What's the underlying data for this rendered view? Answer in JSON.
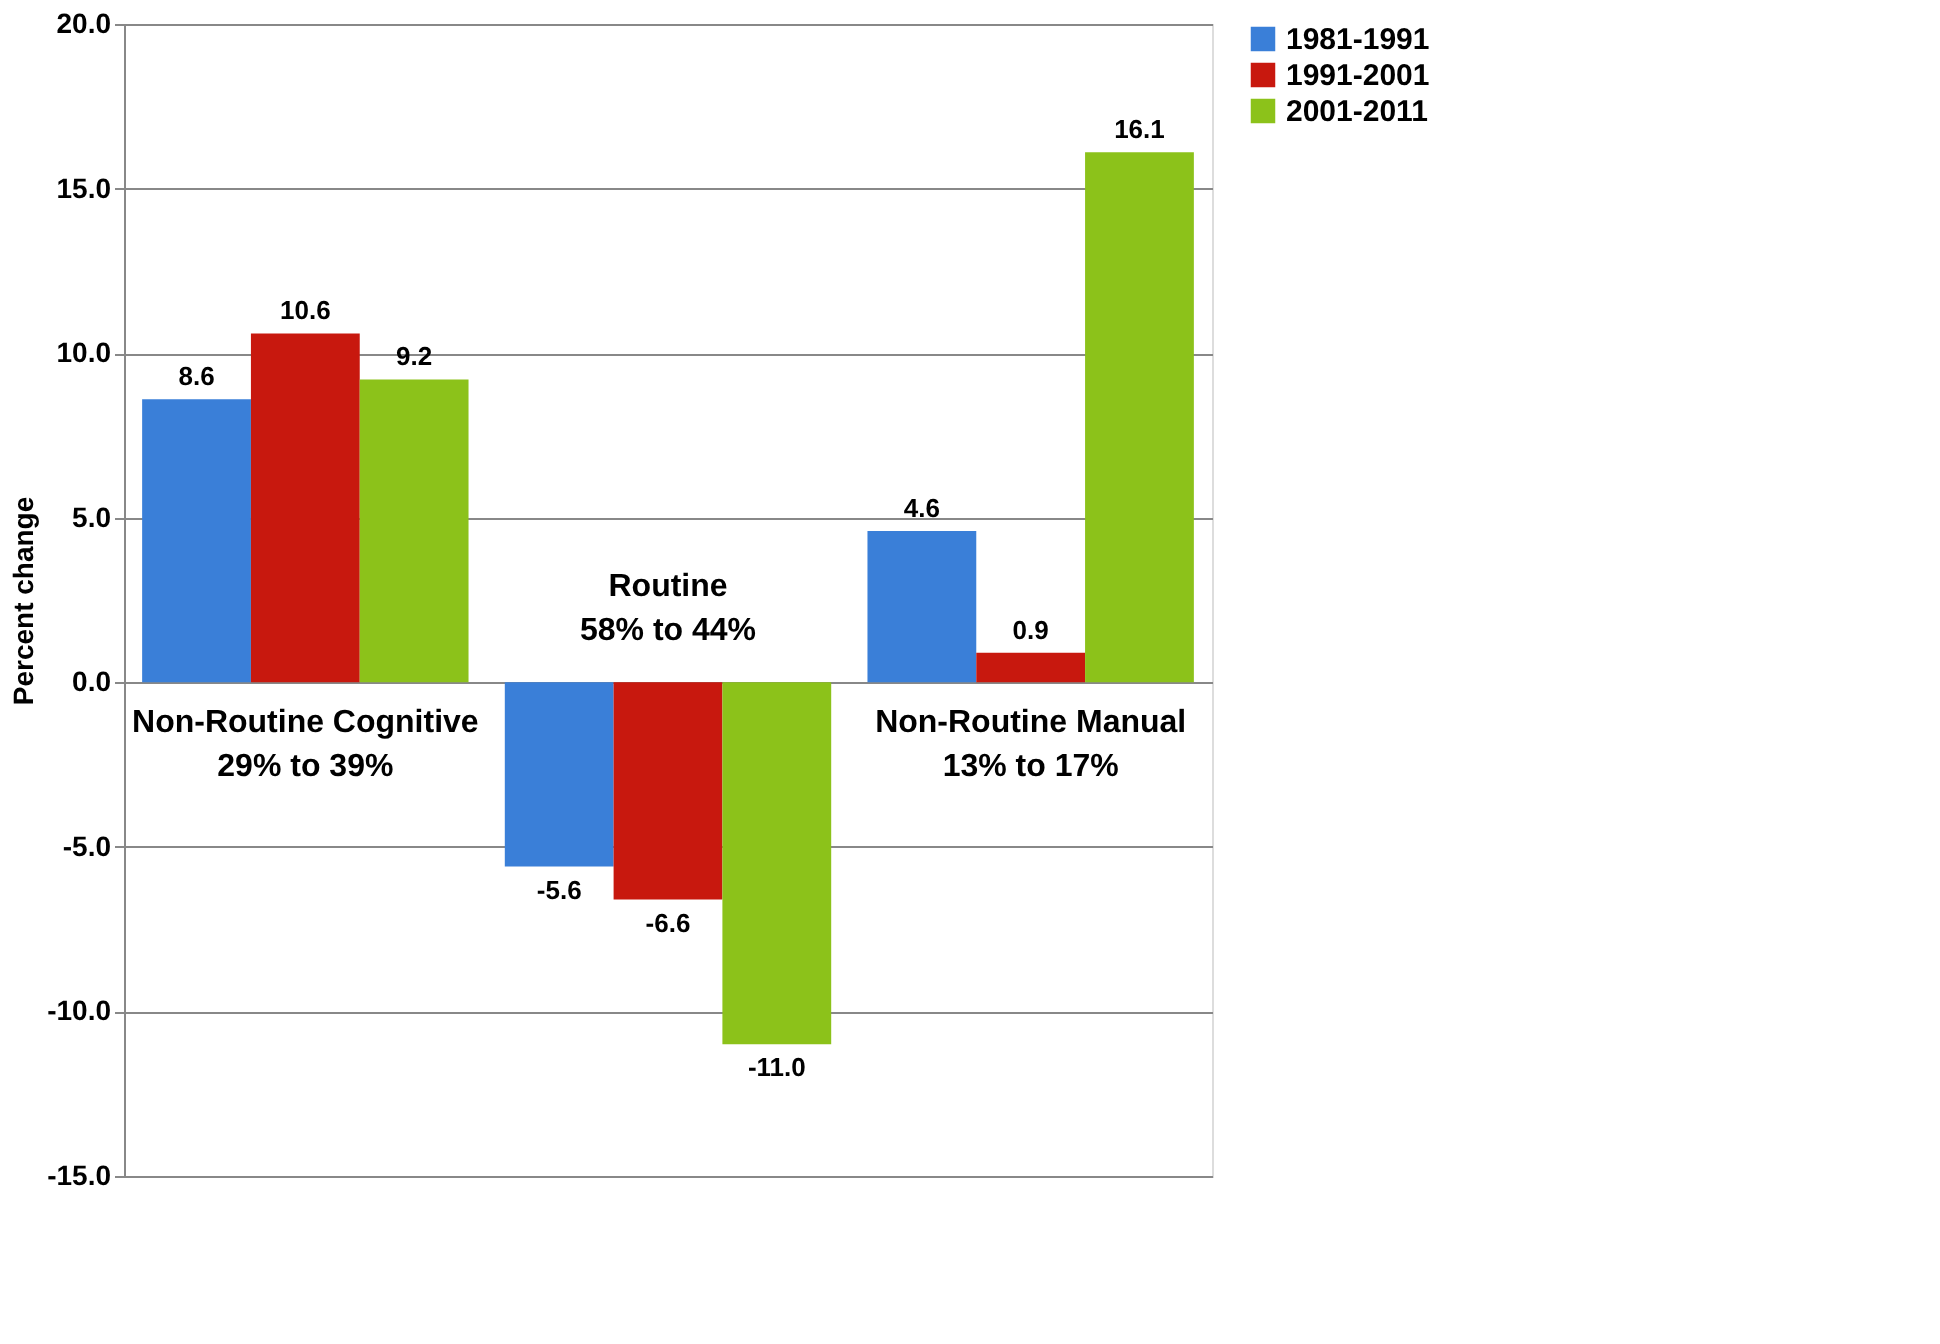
{
  "chart_data": {
    "type": "bar",
    "ylabel": "Percent change",
    "categories": [
      "Non-Routine Cognitive\n29% to 39%",
      "Routine\n58% to 44%",
      "Non-Routine Manual\n13% to 17%"
    ],
    "series": [
      {
        "name": "1981-1991",
        "color": "#3a7fd8",
        "values": [
          8.6,
          -5.6,
          4.6
        ]
      },
      {
        "name": "1991-2001",
        "color": "#c8180e",
        "values": [
          10.6,
          -6.6,
          0.9
        ]
      },
      {
        "name": "2001-2011",
        "color": "#8cc21a",
        "values": [
          9.2,
          -11.0,
          16.1
        ],
        "value_labels": [
          "9.2",
          "-11.0",
          "16.1"
        ]
      }
    ],
    "ylim": [
      -15,
      20
    ],
    "yticks": [
      {
        "value": -15,
        "label": "-15.0"
      },
      {
        "value": -10,
        "label": "-10.0"
      },
      {
        "value": -5,
        "label": "-5.0"
      },
      {
        "value": 0,
        "label": "0.0"
      },
      {
        "value": 5,
        "label": "5.0"
      },
      {
        "value": 10,
        "label": "10.0"
      },
      {
        "value": 15,
        "label": "15.0"
      },
      {
        "value": 20,
        "label": "20.0"
      }
    ],
    "grid": "y",
    "legend": "right",
    "data_labels": true
  }
}
